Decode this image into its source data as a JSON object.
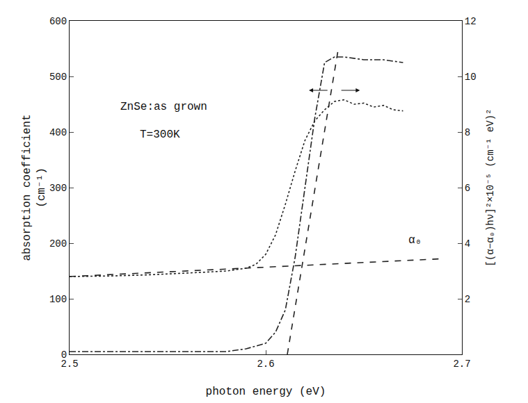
{
  "chart_data": {
    "type": "line",
    "xlabel": "photon energy (eV)",
    "ylabel": "absorption coefficient",
    "ylabel_unit": "(cm⁻¹)",
    "y2label": "[(α−α₀)hν]²×10⁻⁵ (cm⁻¹ eV)²",
    "annotations": [
      {
        "text": "ZnSe:as grown",
        "x": 2.525,
        "y": 445
      },
      {
        "text": "T=300K",
        "x": 2.535,
        "y": 395
      },
      {
        "text": "α₀",
        "x": 2.672,
        "y": 205
      }
    ],
    "xlim": [
      2.5,
      2.7
    ],
    "xticks": [
      2.5,
      2.6,
      2.7
    ],
    "ylim": [
      0,
      600
    ],
    "yticks": [
      0,
      100,
      200,
      300,
      400,
      500,
      600
    ],
    "y2lim": [
      0,
      12
    ],
    "y2ticks": [
      2,
      4,
      6,
      8,
      10,
      12
    ],
    "grid": false,
    "series": [
      {
        "color": "#222222",
        "line_style": "dot",
        "axis": "y",
        "x": [
          2.5,
          2.52,
          2.54,
          2.56,
          2.57,
          2.58,
          2.59,
          2.595,
          2.6,
          2.605,
          2.61,
          2.615,
          2.62,
          2.625,
          2.63,
          2.635,
          2.64,
          2.645,
          2.65,
          2.655,
          2.66,
          2.665,
          2.67
        ],
        "values": [
          140,
          141,
          143,
          146,
          148,
          150,
          155,
          162,
          180,
          215,
          270,
          330,
          385,
          420,
          440,
          455,
          458,
          450,
          452,
          445,
          448,
          440,
          438
        ]
      },
      {
        "color": "#222222",
        "line_style": "dashdot",
        "axis": "y2",
        "x": [
          2.5,
          2.55,
          2.58,
          2.59,
          2.6,
          2.605,
          2.61,
          2.615,
          2.62,
          2.625,
          2.63,
          2.635,
          2.64,
          2.65,
          2.66,
          2.67
        ],
        "values": [
          0.1,
          0.1,
          0.1,
          0.2,
          0.4,
          0.8,
          1.6,
          3.5,
          6,
          8.5,
          10.5,
          10.7,
          10.7,
          10.6,
          10.6,
          10.5
        ]
      },
      {
        "color": "#222222",
        "line_style": "dash",
        "axis": "y",
        "x": [
          2.5,
          2.69
        ],
        "values": [
          140,
          172
        ]
      },
      {
        "color": "#222222",
        "line_style": "dash",
        "axis": "y2",
        "x": [
          2.611,
          2.637
        ],
        "values": [
          0,
          11
        ]
      }
    ]
  }
}
